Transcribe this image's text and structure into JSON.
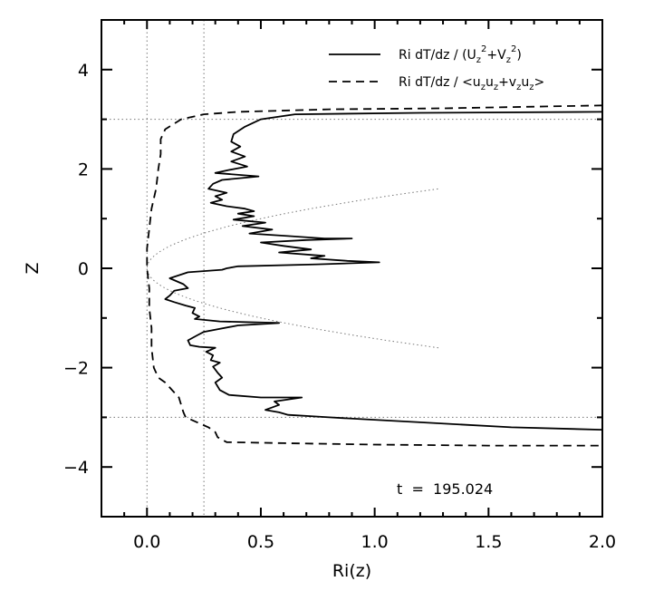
{
  "chart_data": {
    "type": "line",
    "xlabel": "Ri(z)",
    "ylabel": "Z",
    "xlim": [
      -0.2,
      2.0
    ],
    "ylim": [
      -5,
      5
    ],
    "xticks": [
      "0.0",
      "0.5",
      "1.0",
      "1.5",
      "2.0"
    ],
    "yticks": [
      "−4",
      "−2",
      "0",
      "2",
      "4"
    ],
    "xtick_values": [
      0,
      0.5,
      1.0,
      1.5,
      2.0
    ],
    "ytick_values": [
      -4,
      -2,
      0,
      2,
      4
    ],
    "annotation": "t  =  195.024",
    "legend_placement": "top-right",
    "series": [
      {
        "name": "Ri dT/dz / (Uz²+Vz²)",
        "style": "solid",
        "points": [
          [
            2.0,
            3.15
          ],
          [
            1.2,
            3.13
          ],
          [
            0.65,
            3.1
          ],
          [
            0.5,
            3.0
          ],
          [
            0.43,
            2.85
          ],
          [
            0.38,
            2.7
          ],
          [
            0.37,
            2.55
          ],
          [
            0.41,
            2.45
          ],
          [
            0.37,
            2.35
          ],
          [
            0.43,
            2.25
          ],
          [
            0.37,
            2.15
          ],
          [
            0.44,
            2.05
          ],
          [
            0.36,
            1.98
          ],
          [
            0.3,
            1.92
          ],
          [
            0.49,
            1.85
          ],
          [
            0.33,
            1.78
          ],
          [
            0.29,
            1.7
          ],
          [
            0.27,
            1.6
          ],
          [
            0.35,
            1.52
          ],
          [
            0.3,
            1.45
          ],
          [
            0.33,
            1.38
          ],
          [
            0.28,
            1.32
          ],
          [
            0.35,
            1.25
          ],
          [
            0.43,
            1.2
          ],
          [
            0.47,
            1.15
          ],
          [
            0.4,
            1.1
          ],
          [
            0.47,
            1.05
          ],
          [
            0.38,
            0.98
          ],
          [
            0.52,
            0.92
          ],
          [
            0.42,
            0.85
          ],
          [
            0.55,
            0.78
          ],
          [
            0.45,
            0.7
          ],
          [
            0.62,
            0.65
          ],
          [
            0.78,
            0.6
          ],
          [
            0.9,
            0.6
          ],
          [
            0.7,
            0.57
          ],
          [
            0.5,
            0.52
          ],
          [
            0.6,
            0.45
          ],
          [
            0.72,
            0.38
          ],
          [
            0.58,
            0.32
          ],
          [
            0.78,
            0.25
          ],
          [
            0.72,
            0.2
          ],
          [
            0.88,
            0.15
          ],
          [
            1.02,
            0.12
          ],
          [
            0.75,
            0.08
          ],
          [
            0.4,
            0.04
          ],
          [
            0.35,
            0.0
          ],
          [
            0.33,
            -0.03
          ],
          [
            0.18,
            -0.08
          ],
          [
            0.1,
            -0.2
          ],
          [
            0.16,
            -0.32
          ],
          [
            0.18,
            -0.4
          ],
          [
            0.12,
            -0.45
          ],
          [
            0.1,
            -0.55
          ],
          [
            0.08,
            -0.62
          ],
          [
            0.12,
            -0.68
          ],
          [
            0.17,
            -0.75
          ],
          [
            0.21,
            -0.8
          ],
          [
            0.2,
            -0.9
          ],
          [
            0.23,
            -0.97
          ],
          [
            0.21,
            -1.02
          ],
          [
            0.32,
            -1.07
          ],
          [
            0.58,
            -1.1
          ],
          [
            0.4,
            -1.15
          ],
          [
            0.25,
            -1.28
          ],
          [
            0.22,
            -1.35
          ],
          [
            0.18,
            -1.45
          ],
          [
            0.19,
            -1.55
          ],
          [
            0.23,
            -1.58
          ],
          [
            0.3,
            -1.6
          ],
          [
            0.26,
            -1.68
          ],
          [
            0.29,
            -1.75
          ],
          [
            0.28,
            -1.85
          ],
          [
            0.32,
            -1.9
          ],
          [
            0.29,
            -1.98
          ],
          [
            0.31,
            -2.1
          ],
          [
            0.33,
            -2.2
          ],
          [
            0.3,
            -2.3
          ],
          [
            0.32,
            -2.45
          ],
          [
            0.36,
            -2.55
          ],
          [
            0.5,
            -2.6
          ],
          [
            0.68,
            -2.6
          ],
          [
            0.56,
            -2.68
          ],
          [
            0.58,
            -2.75
          ],
          [
            0.52,
            -2.85
          ],
          [
            0.58,
            -2.9
          ],
          [
            0.62,
            -2.95
          ],
          [
            0.8,
            -3.0
          ],
          [
            1.2,
            -3.1
          ],
          [
            1.6,
            -3.2
          ],
          [
            2.0,
            -3.25
          ]
        ]
      },
      {
        "name": "Ri dT/dz / <uzuz+vzuz>",
        "style": "dashed",
        "points": [
          [
            2.0,
            3.28
          ],
          [
            1.3,
            3.22
          ],
          [
            0.8,
            3.2
          ],
          [
            0.4,
            3.15
          ],
          [
            0.25,
            3.1
          ],
          [
            0.15,
            3.0
          ],
          [
            0.08,
            2.8
          ],
          [
            0.06,
            2.6
          ],
          [
            0.06,
            2.3
          ],
          [
            0.05,
            2.0
          ],
          [
            0.04,
            1.6
          ],
          [
            0.02,
            1.2
          ],
          [
            0.01,
            0.8
          ],
          [
            0.0,
            0.4
          ],
          [
            0.0,
            0.0
          ],
          [
            0.01,
            -0.4
          ],
          [
            0.01,
            -0.8
          ],
          [
            0.02,
            -1.2
          ],
          [
            0.02,
            -1.6
          ],
          [
            0.03,
            -2.0
          ],
          [
            0.05,
            -2.2
          ],
          [
            0.08,
            -2.3
          ],
          [
            0.1,
            -2.4
          ],
          [
            0.12,
            -2.5
          ],
          [
            0.14,
            -2.6
          ],
          [
            0.15,
            -2.75
          ],
          [
            0.16,
            -2.9
          ],
          [
            0.17,
            -3.0
          ],
          [
            0.22,
            -3.1
          ],
          [
            0.27,
            -3.2
          ],
          [
            0.3,
            -3.3
          ],
          [
            0.31,
            -3.4
          ],
          [
            0.33,
            -3.45
          ],
          [
            0.35,
            -3.5
          ],
          [
            0.6,
            -3.52
          ],
          [
            1.0,
            -3.55
          ],
          [
            1.5,
            -3.57
          ],
          [
            2.0,
            -3.57
          ]
        ]
      }
    ]
  }
}
